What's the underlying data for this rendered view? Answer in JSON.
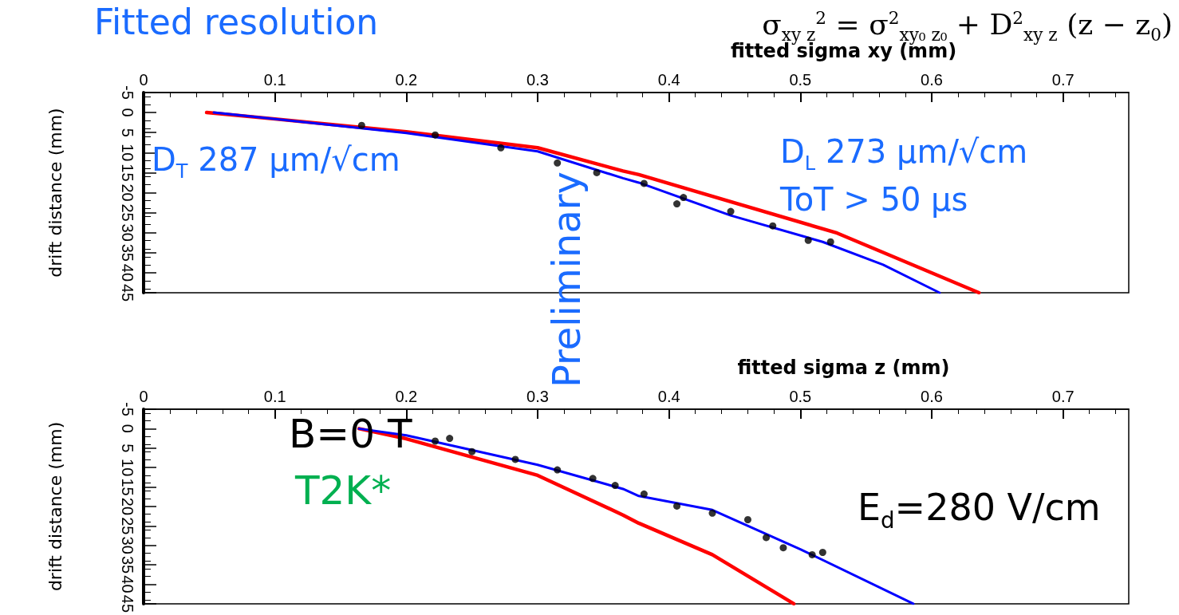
{
  "chart_data": [
    {
      "type": "scatter",
      "title": "Fitted resolution",
      "subtitle": "σ$_{xy z}$$^{2}$ = σ$^{2}$$_{xy₀ z₀}$ + D$^{2}$$_{xy z}$ (z − z$_{0}$)",
      "xlabel": "fitted sigma xy (mm)",
      "ylabel": "drift distance (mm)",
      "xlim": [
        0,
        0.75
      ],
      "xticks": [
        0,
        0.1,
        0.2,
        0.3,
        0.4,
        0.5,
        0.6,
        0.7
      ],
      "ylim": [
        45,
        -5
      ],
      "yticks": [
        -5,
        0,
        5,
        10,
        15,
        20,
        25,
        30,
        35,
        40,
        45
      ],
      "grid": false,
      "marker": "circle",
      "annotations": [
        "D$_{T}$ 287 μm/√cm",
        "D$_{L}$ 273 μm/√cm",
        "ToT > 50 μs",
        "Preliminary"
      ],
      "series": [
        {
          "color": "#000000",
          "x": [
            0.166,
            0.222,
            0.272,
            0.315,
            0.345,
            0.381,
            0.406,
            0.411,
            0.447,
            0.479,
            0.506,
            0.523
          ],
          "values": [
            3.2,
            5.6,
            8.8,
            12.6,
            15,
            17.7,
            22.8,
            21.2,
            24.7,
            28.3,
            31.9,
            32.3
          ]
        },
        {
          "type": "line",
          "marker": "none",
          "color": "#ff0000",
          "x": [
            0.048,
            0.1,
            0.2,
            0.3,
            0.365,
            0.377,
            0.528,
            0.636
          ],
          "values": [
            0,
            1.6,
            4.8,
            8.8,
            14.6,
            15.5,
            30.1,
            45
          ]
        },
        {
          "type": "line",
          "marker": "none",
          "color": "#0000ff",
          "x": [
            0.0535,
            0.2,
            0.3,
            0.365,
            0.377,
            0.447,
            0.517,
            0.563,
            0.606
          ],
          "values": [
            0,
            5.1,
            9.7,
            16.4,
            17.5,
            25.7,
            32.3,
            38,
            45
          ]
        }
      ]
    },
    {
      "type": "scatter",
      "xlabel": "fitted sigma z (mm)",
      "ylabel": "drift distance (mm)",
      "xlim": [
        0,
        0.75
      ],
      "xticks": [
        0,
        0.1,
        0.2,
        0.3,
        0.4,
        0.5,
        0.6,
        0.7
      ],
      "ylim": [
        45,
        -5
      ],
      "yticks": [
        -5,
        0,
        5,
        10,
        15,
        20,
        25,
        30,
        35,
        40,
        45
      ],
      "grid": false,
      "marker": "circle",
      "annotations": [
        "B=0 T",
        "T2K*",
        "E$_{d}$=280 V/cm"
      ],
      "series": [
        {
          "color": "#000000",
          "x": [
            0.222,
            0.233,
            0.25,
            0.283,
            0.315,
            0.342,
            0.359,
            0.381,
            0.406,
            0.433,
            0.46,
            0.474,
            0.487,
            0.509,
            0.517
          ],
          "values": [
            3.2,
            2.5,
            5.9,
            7.9,
            10.6,
            12.8,
            14.6,
            16.8,
            19.9,
            21.7,
            23.4,
            28,
            30.6,
            32.4,
            31.8
          ]
        },
        {
          "type": "line",
          "marker": "none",
          "color": "#ff0000",
          "x": [
            0.164,
            0.2,
            0.3,
            0.365,
            0.377,
            0.433,
            0.495
          ],
          "values": [
            0,
            2.6,
            12,
            22.2,
            24.3,
            32.4,
            45
          ]
        },
        {
          "type": "line",
          "marker": "none",
          "color": "#0000ff",
          "x": [
            0.164,
            0.2,
            0.3,
            0.365,
            0.377,
            0.433,
            0.5,
            0.586
          ],
          "values": [
            0,
            1.7,
            9.3,
            15.5,
            17.3,
            20.9,
            31,
            45
          ]
        }
      ]
    }
  ]
}
